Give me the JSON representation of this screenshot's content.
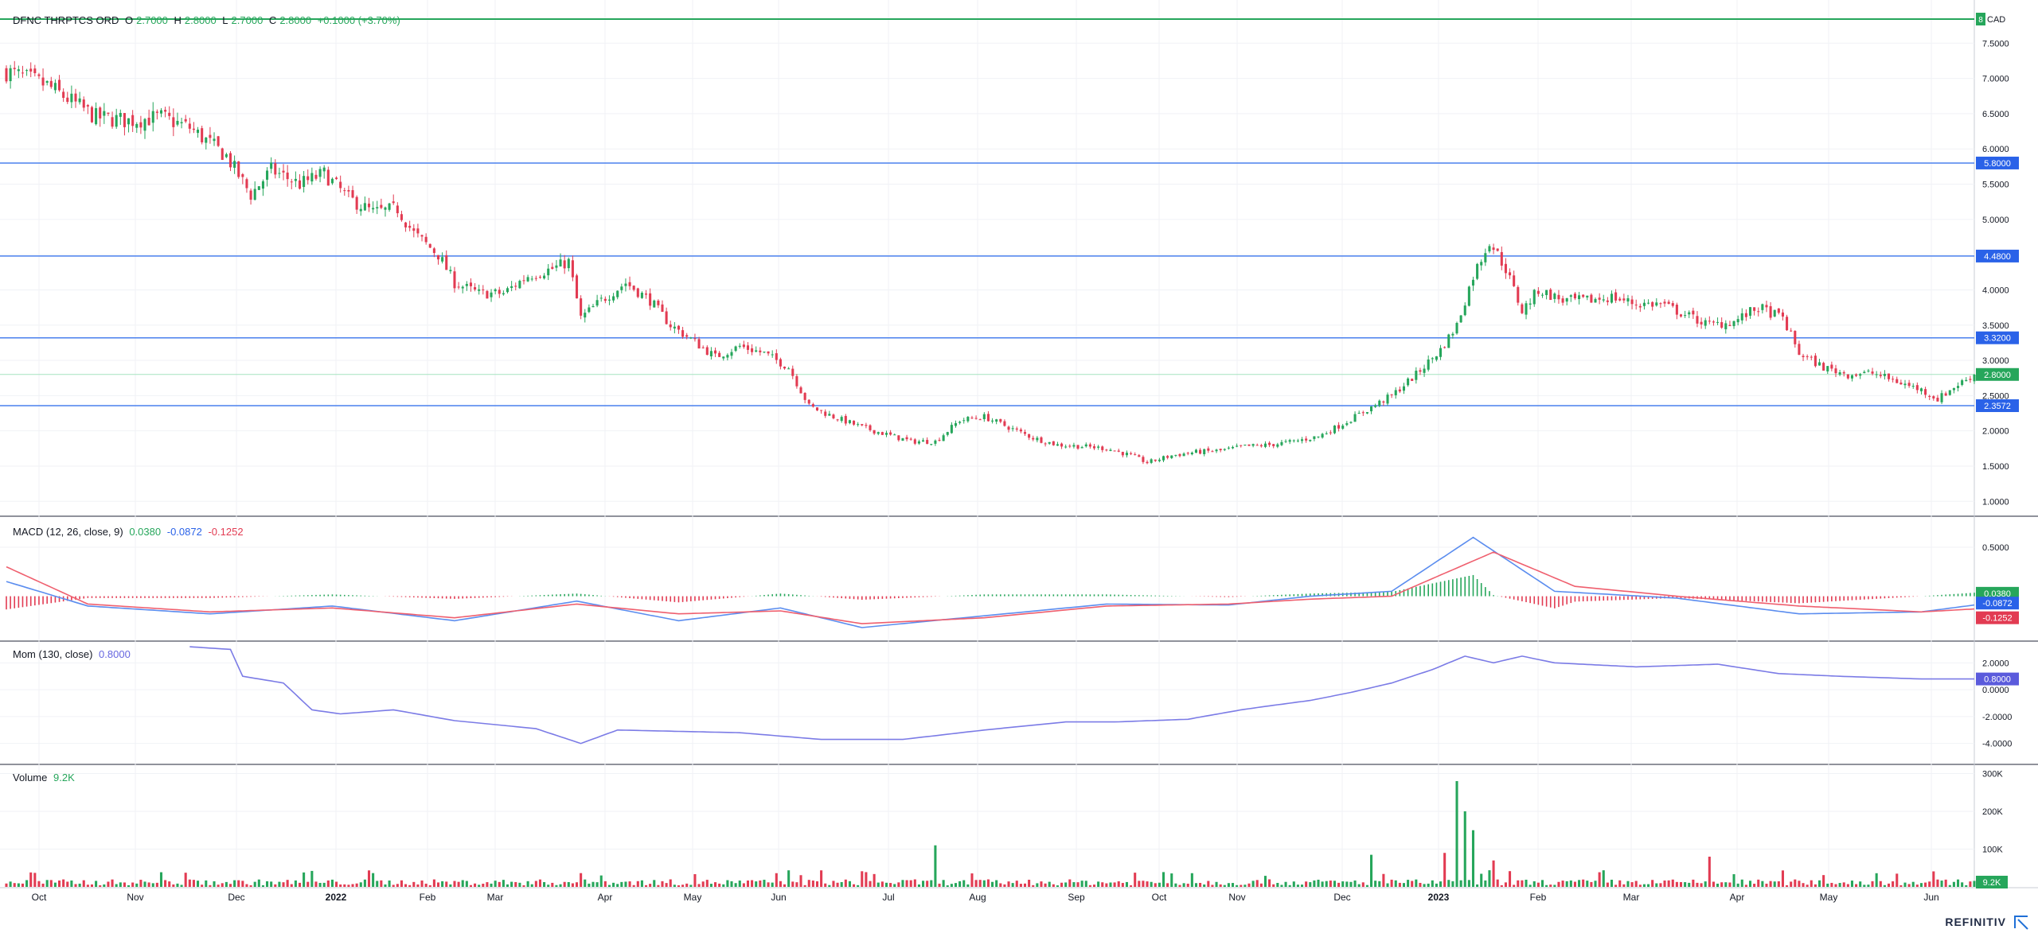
{
  "header": {
    "symbol": "DFNC THRPTCS ORD",
    "o_label": "O",
    "o_value": "2.7000",
    "h_label": "H",
    "h_value": "2.8000",
    "l_label": "L",
    "l_value": "2.7000",
    "c_label": "C",
    "c_value": "2.8000",
    "change": "+0.1000 (+3.70%)",
    "currency_badge": "8",
    "currency": "CAD"
  },
  "macd_legend": {
    "name": "MACD (12, 26, close, 9)",
    "v1": "0.0380",
    "v2": "-0.0872",
    "v3": "-0.1252"
  },
  "mom_legend": {
    "name": "Mom (130, close)",
    "v1": "0.8000"
  },
  "volume_legend": {
    "name": "Volume",
    "v1": "9.2K"
  },
  "brand": "REFINITIV",
  "colors": {
    "up": "#26a65b",
    "down": "#e23b52",
    "line_blue": "#2a62e8",
    "hline": "#4a80ee",
    "macd_line": "#5b8def",
    "signal_line": "#ef5f6e",
    "mom_line": "#7b7be6",
    "top_line": "#26a65b"
  },
  "chart_data": [
    {
      "type": "candlestick",
      "title": "DFNC THRPTCS ORD",
      "x_ticks": [
        "Oct",
        "Nov",
        "Dec",
        "2022",
        "Feb",
        "Mar",
        "Apr",
        "May",
        "Jun",
        "Jul",
        "Aug",
        "Sep",
        "Oct",
        "Nov",
        "Dec",
        "2023",
        "Feb",
        "Mar",
        "Apr",
        "May",
        "Jun"
      ],
      "y_ticks": [
        "1.0000",
        "1.5000",
        "2.0000",
        "2.5000",
        "3.0000",
        "3.5000",
        "4.0000",
        "4.5000",
        "5.0000",
        "5.5000",
        "6.0000",
        "6.5000",
        "7.0000",
        "7.5000"
      ],
      "ylim": [
        0.8,
        8.0
      ],
      "horizontal_lines": [
        {
          "value": 5.8,
          "label": "5.8000"
        },
        {
          "value": 4.48,
          "label": "4.4800"
        },
        {
          "value": 3.32,
          "label": "3.3200"
        },
        {
          "value": 2.3572,
          "label": "2.3572"
        }
      ],
      "last_price": {
        "value": 2.8,
        "label": "2.8000"
      },
      "top_line": {
        "value": 7.9,
        "label": "8"
      },
      "close_path": [
        [
          0,
          7.1
        ],
        [
          10,
          6.9
        ],
        [
          22,
          6.45
        ],
        [
          30,
          6.4
        ],
        [
          38,
          6.45
        ],
        [
          45,
          6.3
        ],
        [
          54,
          5.9
        ],
        [
          60,
          5.35
        ],
        [
          65,
          5.7
        ],
        [
          72,
          5.5
        ],
        [
          78,
          5.65
        ],
        [
          84,
          5.3
        ],
        [
          90,
          5.1
        ],
        [
          96,
          5.15
        ],
        [
          100,
          4.8
        ],
        [
          106,
          4.5
        ],
        [
          110,
          4.1
        ],
        [
          116,
          3.95
        ],
        [
          122,
          3.95
        ],
        [
          128,
          4.2
        ],
        [
          134,
          4.3
        ],
        [
          138,
          4.4
        ],
        [
          141,
          3.6
        ],
        [
          146,
          3.85
        ],
        [
          152,
          4.1
        ],
        [
          158,
          3.85
        ],
        [
          163,
          3.5
        ],
        [
          168,
          3.3
        ],
        [
          174,
          3.05
        ],
        [
          180,
          3.2
        ],
        [
          186,
          3.1
        ],
        [
          192,
          2.9
        ],
        [
          197,
          2.35
        ],
        [
          203,
          2.2
        ],
        [
          210,
          2.05
        ],
        [
          216,
          1.95
        ],
        [
          222,
          1.85
        ],
        [
          228,
          1.85
        ],
        [
          234,
          2.15
        ],
        [
          240,
          2.2
        ],
        [
          246,
          2.05
        ],
        [
          252,
          1.9
        ],
        [
          258,
          1.8
        ],
        [
          264,
          1.78
        ],
        [
          270,
          1.75
        ],
        [
          276,
          1.65
        ],
        [
          280,
          1.55
        ],
        [
          286,
          1.65
        ],
        [
          292,
          1.7
        ],
        [
          298,
          1.72
        ],
        [
          304,
          1.78
        ],
        [
          310,
          1.8
        ],
        [
          316,
          1.85
        ],
        [
          322,
          1.92
        ],
        [
          328,
          2.1
        ],
        [
          334,
          2.3
        ],
        [
          340,
          2.5
        ],
        [
          346,
          2.8
        ],
        [
          352,
          3.15
        ],
        [
          356,
          3.5
        ],
        [
          360,
          4.2
        ],
        [
          364,
          4.7
        ],
        [
          368,
          4.3
        ],
        [
          372,
          3.7
        ],
        [
          376,
          4.0
        ],
        [
          382,
          3.85
        ],
        [
          388,
          3.85
        ],
        [
          394,
          3.9
        ],
        [
          400,
          3.8
        ],
        [
          406,
          3.8
        ],
        [
          412,
          3.65
        ],
        [
          418,
          3.5
        ],
        [
          424,
          3.55
        ],
        [
          430,
          3.75
        ],
        [
          436,
          3.6
        ],
        [
          440,
          3.1
        ],
        [
          446,
          2.9
        ],
        [
          452,
          2.8
        ],
        [
          458,
          2.82
        ],
        [
          464,
          2.7
        ],
        [
          470,
          2.58
        ],
        [
          474,
          2.45
        ],
        [
          478,
          2.62
        ],
        [
          483,
          2.8
        ]
      ]
    },
    {
      "type": "line",
      "title": "MACD (12, 26, close, 9)",
      "y_ticks": [
        "0.5000"
      ],
      "ylim": [
        -0.45,
        0.8
      ],
      "current": {
        "histogram": 0.038,
        "macd": -0.0872,
        "signal": -0.1252
      },
      "macd_path": [
        [
          0,
          0.15
        ],
        [
          20,
          -0.1
        ],
        [
          50,
          -0.18
        ],
        [
          80,
          -0.1
        ],
        [
          110,
          -0.25
        ],
        [
          140,
          -0.05
        ],
        [
          165,
          -0.25
        ],
        [
          190,
          -0.12
        ],
        [
          210,
          -0.32
        ],
        [
          240,
          -0.2
        ],
        [
          270,
          -0.08
        ],
        [
          300,
          -0.09
        ],
        [
          320,
          0.0
        ],
        [
          340,
          0.05
        ],
        [
          360,
          0.6
        ],
        [
          380,
          0.05
        ],
        [
          410,
          -0.02
        ],
        [
          440,
          -0.18
        ],
        [
          470,
          -0.16
        ],
        [
          483,
          -0.09
        ]
      ],
      "signal_path": [
        [
          0,
          0.3
        ],
        [
          20,
          -0.08
        ],
        [
          50,
          -0.16
        ],
        [
          80,
          -0.12
        ],
        [
          110,
          -0.22
        ],
        [
          140,
          -0.08
        ],
        [
          165,
          -0.18
        ],
        [
          190,
          -0.15
        ],
        [
          210,
          -0.28
        ],
        [
          240,
          -0.22
        ],
        [
          270,
          -0.1
        ],
        [
          300,
          -0.08
        ],
        [
          320,
          -0.03
        ],
        [
          340,
          0.0
        ],
        [
          365,
          0.45
        ],
        [
          385,
          0.1
        ],
        [
          410,
          0.0
        ],
        [
          440,
          -0.1
        ],
        [
          470,
          -0.16
        ],
        [
          483,
          -0.13
        ]
      ]
    },
    {
      "type": "line",
      "title": "Mom (130, close)",
      "y_ticks": [
        "2.0000",
        "0.0000",
        "-2.0000",
        "-4.0000"
      ],
      "ylim": [
        -5.5,
        3.5
      ],
      "current": 0.8,
      "series_path": [
        [
          45,
          3.2
        ],
        [
          55,
          3.0
        ],
        [
          58,
          1.0
        ],
        [
          68,
          0.5
        ],
        [
          75,
          -1.5
        ],
        [
          82,
          -1.8
        ],
        [
          95,
          -1.5
        ],
        [
          110,
          -2.3
        ],
        [
          130,
          -2.9
        ],
        [
          141,
          -4.0
        ],
        [
          150,
          -3.0
        ],
        [
          165,
          -3.1
        ],
        [
          180,
          -3.2
        ],
        [
          200,
          -3.7
        ],
        [
          220,
          -3.7
        ],
        [
          240,
          -3.0
        ],
        [
          260,
          -2.4
        ],
        [
          272,
          -2.4
        ],
        [
          290,
          -2.2
        ],
        [
          303,
          -1.5
        ],
        [
          310,
          -1.2
        ],
        [
          320,
          -0.8
        ],
        [
          330,
          -0.2
        ],
        [
          340,
          0.5
        ],
        [
          350,
          1.5
        ],
        [
          358,
          2.5
        ],
        [
          365,
          2.0
        ],
        [
          372,
          2.5
        ],
        [
          380,
          2.0
        ],
        [
          400,
          1.7
        ],
        [
          420,
          1.9
        ],
        [
          435,
          1.2
        ],
        [
          450,
          1.0
        ],
        [
          470,
          0.8
        ],
        [
          483,
          0.8
        ]
      ]
    },
    {
      "type": "bar",
      "title": "Volume",
      "y_ticks": [
        "300K",
        "200K",
        "100K"
      ],
      "ylim": [
        0,
        320000
      ],
      "current": "9.2K",
      "spikes": [
        [
          228,
          110000
        ],
        [
          335,
          85000
        ],
        [
          353,
          90000
        ],
        [
          356,
          280000
        ],
        [
          358,
          200000
        ],
        [
          360,
          150000
        ],
        [
          365,
          70000
        ],
        [
          418,
          80000
        ],
        [
          464,
          35000
        ]
      ]
    }
  ]
}
